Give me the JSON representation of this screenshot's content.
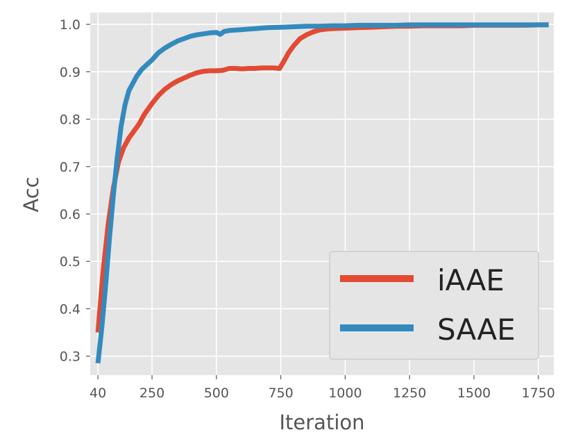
{
  "chart_data": {
    "type": "line",
    "title": "",
    "xlabel": "Iteration",
    "ylabel": "Acc",
    "xlim": [
      10,
      1810
    ],
    "ylim": [
      0.26,
      1.025
    ],
    "x_ticks": [
      40,
      250,
      500,
      750,
      1000,
      1250,
      1500,
      1750
    ],
    "y_ticks": [
      0.3,
      0.4,
      0.5,
      0.6,
      0.7,
      0.8,
      0.9,
      1.0
    ],
    "x_tick_labels": [
      "40",
      "250",
      "500",
      "750",
      "1000",
      "1250",
      "1500",
      "1750"
    ],
    "y_tick_labels": [
      "0.3",
      "0.4",
      "0.5",
      "0.6",
      "0.7",
      "0.8",
      "0.9",
      "1.0"
    ],
    "grid": true,
    "legend_position": "lower-right",
    "background_color": "#e5e5e5",
    "series": [
      {
        "name": "iAAE",
        "color": "#e24a33",
        "x": [
          40,
          60,
          80,
          100,
          120,
          140,
          160,
          180,
          200,
          220,
          250,
          275,
          300,
          325,
          350,
          375,
          400,
          425,
          450,
          475,
          500,
          525,
          550,
          575,
          600,
          625,
          650,
          675,
          700,
          725,
          745,
          760,
          780,
          800,
          825,
          850,
          875,
          900,
          925,
          950,
          1000,
          1050,
          1100,
          1150,
          1200,
          1250,
          1300,
          1350,
          1400,
          1450,
          1500,
          1550,
          1600,
          1650,
          1700,
          1750,
          1790
        ],
        "values": [
          0.35,
          0.48,
          0.58,
          0.655,
          0.71,
          0.74,
          0.76,
          0.775,
          0.79,
          0.81,
          0.833,
          0.85,
          0.863,
          0.873,
          0.881,
          0.887,
          0.893,
          0.898,
          0.901,
          0.902,
          0.902,
          0.903,
          0.907,
          0.907,
          0.906,
          0.907,
          0.907,
          0.908,
          0.908,
          0.908,
          0.907,
          0.92,
          0.94,
          0.955,
          0.97,
          0.978,
          0.984,
          0.988,
          0.99,
          0.991,
          0.992,
          0.993,
          0.994,
          0.995,
          0.996,
          0.996,
          0.997,
          0.997,
          0.997,
          0.997,
          0.998,
          0.998,
          0.998,
          0.998,
          0.998,
          0.999,
          0.999
        ]
      },
      {
        "name": "SAAE",
        "color": "#348abd",
        "x": [
          40,
          55,
          70,
          85,
          100,
          115,
          130,
          145,
          160,
          175,
          190,
          210,
          230,
          250,
          275,
          300,
          325,
          350,
          375,
          400,
          425,
          450,
          475,
          500,
          515,
          530,
          550,
          575,
          600,
          625,
          650,
          675,
          700,
          750,
          800,
          850,
          900,
          950,
          1000,
          1050,
          1100,
          1150,
          1200,
          1250,
          1300,
          1350,
          1400,
          1450,
          1500,
          1550,
          1600,
          1650,
          1700,
          1750,
          1790
        ],
        "values": [
          0.285,
          0.36,
          0.45,
          0.55,
          0.64,
          0.72,
          0.785,
          0.83,
          0.86,
          0.875,
          0.89,
          0.905,
          0.915,
          0.925,
          0.94,
          0.95,
          0.958,
          0.965,
          0.97,
          0.975,
          0.978,
          0.98,
          0.982,
          0.983,
          0.979,
          0.985,
          0.987,
          0.988,
          0.989,
          0.99,
          0.991,
          0.992,
          0.993,
          0.994,
          0.995,
          0.996,
          0.996,
          0.997,
          0.997,
          0.998,
          0.998,
          0.998,
          0.998,
          0.999,
          0.999,
          0.999,
          0.999,
          0.999,
          0.999,
          0.999,
          0.999,
          0.999,
          0.999,
          0.999,
          0.999
        ]
      }
    ]
  }
}
